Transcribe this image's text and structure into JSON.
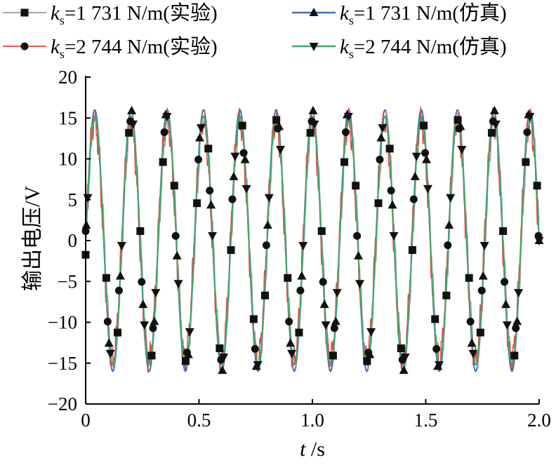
{
  "chart_data": {
    "type": "line",
    "title": "",
    "xlabel": {
      "symbol": "t",
      "unit": "s"
    },
    "ylabel": "输出电压/V",
    "xlim": [
      0,
      2.0
    ],
    "ylim": [
      -20,
      20
    ],
    "xticks": [
      "0",
      "0.5",
      "1.0",
      "1.5",
      "2.0"
    ],
    "yticks": [
      "20",
      "15",
      "10",
      "5",
      "0",
      "−5",
      "−10",
      "−15",
      "−20"
    ],
    "legend_position": "top",
    "signal": {
      "frequency_hz": 6.25,
      "amplitude_sim_1731": 16.0,
      "amplitude_sim_2744": 15.2,
      "amplitude_exp": 14.8
    },
    "series": [
      {
        "name_prefix": "k",
        "name_sub": "s",
        "name_rest": "=1 731 N/m(实验)",
        "kind": "experiment",
        "marker": "square",
        "color": "#9a9a9a",
        "amplitude": 14.8,
        "phase_shift": 0.003
      },
      {
        "name_prefix": "k",
        "name_sub": "s",
        "name_rest": "=2 744 N/m(实验)",
        "kind": "experiment",
        "marker": "circle",
        "color": "#e8433a",
        "amplitude": 14.6,
        "phase_shift": -0.002
      },
      {
        "name_prefix": "k",
        "name_sub": "s",
        "name_rest": "=1 731 N/m(仿真)",
        "kind": "simulation",
        "marker": "triangle-up",
        "color": "#3f6fc1",
        "amplitude": 16.0,
        "phase_shift": 0.0
      },
      {
        "name_prefix": "k",
        "name_sub": "s",
        "name_rest": "=2 744 N/m(仿真)",
        "kind": "simulation",
        "marker": "triangle-down",
        "color": "#3fa66b",
        "amplitude": 15.2,
        "phase_shift": 0.0
      }
    ],
    "marker_x_values": [
      0.0,
      0.1,
      0.15,
      0.2,
      0.25,
      0.3,
      0.35,
      0.4,
      0.45,
      0.5,
      0.55,
      0.6,
      0.65,
      0.7,
      0.75,
      0.8,
      0.85,
      0.9,
      0.95,
      1.0,
      1.05,
      1.1,
      1.15,
      1.2,
      1.25,
      1.3,
      1.35,
      1.4,
      1.45,
      1.5,
      1.55,
      1.6,
      1.65,
      1.7,
      1.75,
      1.8,
      1.85,
      1.9,
      1.95,
      2.0
    ]
  }
}
